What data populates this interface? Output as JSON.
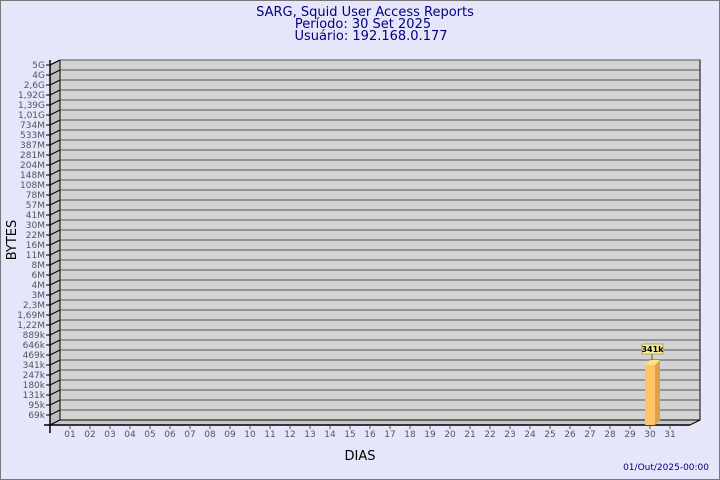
{
  "chart_data": {
    "type": "bar",
    "title": "SARG, Squid User Access Reports",
    "subtitle1": "Período: 30 Set 2025",
    "subtitle2": "Usuário: 192.168.0.177",
    "xlabel": "DIAS",
    "ylabel": "BYTES",
    "footer": "01/Out/2025-00:00",
    "y_scale": "log",
    "grid": true,
    "yticks": [
      "5G",
      "4G",
      "2,6G",
      "1,92G",
      "1,39G",
      "1,01G",
      "734M",
      "533M",
      "387M",
      "281M",
      "204M",
      "148M",
      "108M",
      "78M",
      "57M",
      "41M",
      "30M",
      "22M",
      "16M",
      "11M",
      "8M",
      "6M",
      "4M",
      "3M",
      "2,3M",
      "1,69M",
      "1,22M",
      "889k",
      "646k",
      "469k",
      "341k",
      "247k",
      "180k",
      "131k",
      "95k",
      "69k"
    ],
    "categories": [
      "01",
      "02",
      "03",
      "04",
      "05",
      "06",
      "07",
      "08",
      "09",
      "10",
      "11",
      "12",
      "13",
      "14",
      "15",
      "16",
      "17",
      "18",
      "19",
      "20",
      "21",
      "22",
      "23",
      "24",
      "25",
      "26",
      "27",
      "28",
      "29",
      "30",
      "31"
    ],
    "bars": [
      {
        "day": "30",
        "value": "341k"
      }
    ],
    "colors": {
      "bar": "#ffc46a",
      "bar_side": "#dda14c",
      "panel": "#d3d3d3",
      "title": "#000080",
      "label_bg": "#f4eea0"
    }
  }
}
